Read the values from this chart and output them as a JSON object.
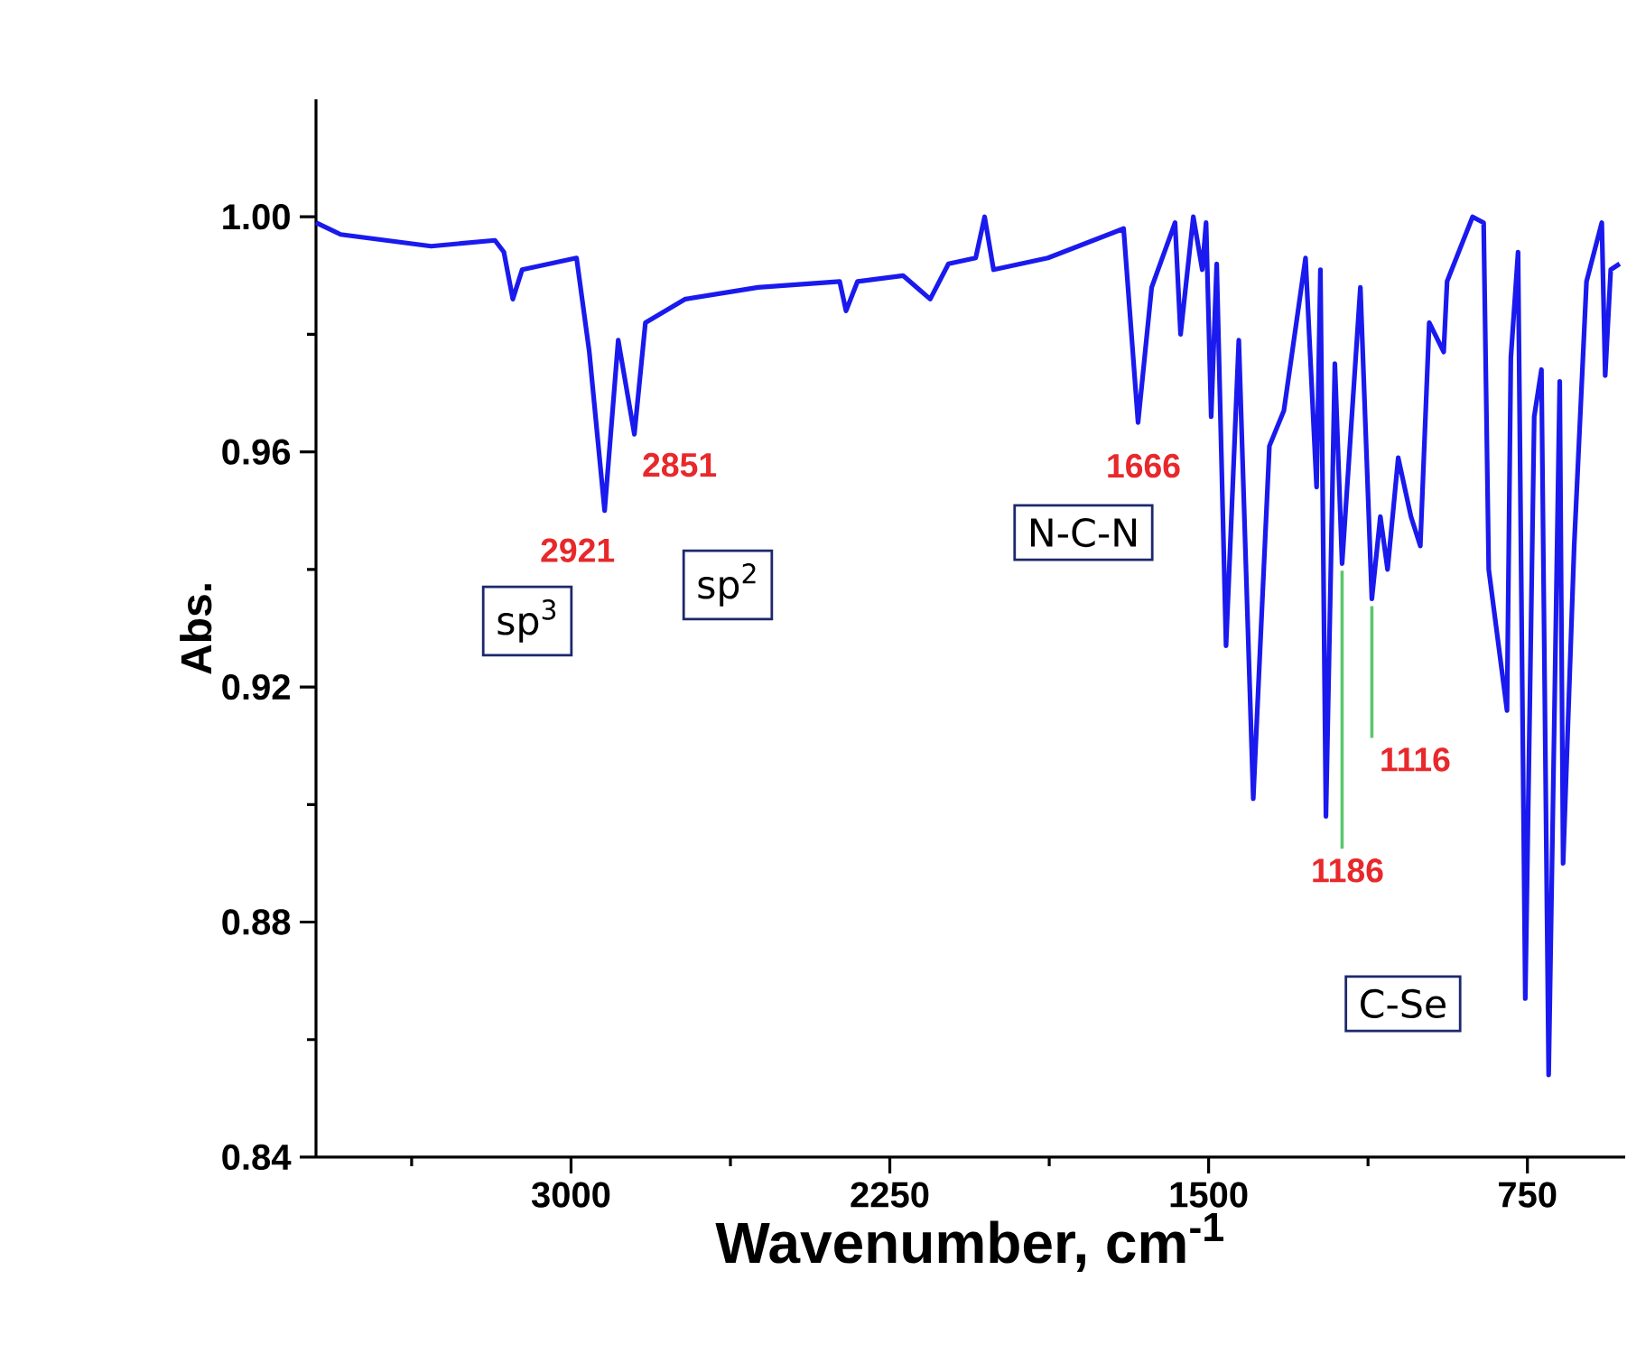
{
  "chart_data": {
    "type": "line",
    "xlabel": "Wavenumber, cm$^{-1}$",
    "ylabel": "Abs.",
    "color": "#1a1aee",
    "x": [
      3600,
      3542,
      3329,
      3179,
      3158,
      3137,
      3115,
      2987,
      2957,
      2921,
      2889,
      2851,
      2825,
      2731,
      2560,
      2368,
      2353,
      2326,
      2219,
      2155,
      2112,
      2048,
      2027,
      2006,
      1878,
      1700,
      1666,
      1634,
      1579,
      1566,
      1536,
      1515,
      1506,
      1494,
      1481,
      1459,
      1429,
      1395,
      1357,
      1323,
      1272,
      1246,
      1237,
      1224,
      1203,
      1186,
      1143,
      1116,
      1096,
      1079,
      1054,
      1024,
      1002,
      981,
      947,
      939,
      879,
      853,
      841,
      798,
      789,
      772,
      755,
      734,
      717,
      700,
      674,
      666,
      640,
      611,
      575,
      567,
      554,
      533
    ],
    "values": [
      0.999,
      0.997,
      0.995,
      0.996,
      0.994,
      0.986,
      0.991,
      0.993,
      0.977,
      0.95,
      0.979,
      0.963,
      0.982,
      0.986,
      0.988,
      0.989,
      0.984,
      0.989,
      0.99,
      0.986,
      0.992,
      0.993,
      1.0,
      0.991,
      0.993,
      0.998,
      0.965,
      0.988,
      0.999,
      0.98,
      1.0,
      0.991,
      0.999,
      0.966,
      0.992,
      0.927,
      0.979,
      0.901,
      0.961,
      0.967,
      0.993,
      0.954,
      0.991,
      0.898,
      0.975,
      0.941,
      0.988,
      0.935,
      0.949,
      0.94,
      0.959,
      0.949,
      0.944,
      0.982,
      0.977,
      0.989,
      1.0,
      0.999,
      0.94,
      0.916,
      0.976,
      0.994,
      0.867,
      0.966,
      0.974,
      0.854,
      0.972,
      0.89,
      0.944,
      0.989,
      0.999,
      0.973,
      0.991,
      0.992
    ],
    "xlim": [
      3600,
      520
    ],
    "ylim": [
      0.84,
      1.02
    ],
    "xticks": [
      {
        "value": 3375,
        "label": null
      },
      3000,
      {
        "value": 2625,
        "label": null
      },
      2250,
      {
        "value": 1875,
        "label": null
      },
      1500,
      {
        "value": 1125,
        "label": null
      },
      750
    ],
    "yticks": [
      0.84,
      {
        "value": 0.86,
        "label": null
      },
      0.88,
      {
        "value": 0.9,
        "label": null
      },
      0.92,
      {
        "value": 0.94,
        "label": null
      },
      0.96,
      {
        "value": 0.98,
        "label": null
      },
      {
        "value": 1,
        "label": "1.00"
      }
    ],
    "annotations": [
      {
        "text": "2921",
        "x": 2921,
        "y": 0.95
      },
      {
        "text": "2851",
        "x": 2851,
        "y": 0.963
      },
      {
        "text": "1666",
        "x": 1666,
        "y": 0.965
      },
      {
        "text": "1186",
        "x": 1186,
        "y": 0.941
      },
      {
        "text": "1116",
        "x": 1116,
        "y": 0.935
      },
      "sp$^{3}$",
      "sp$^{2}$",
      "N-C-N",
      "C-Se"
    ]
  }
}
